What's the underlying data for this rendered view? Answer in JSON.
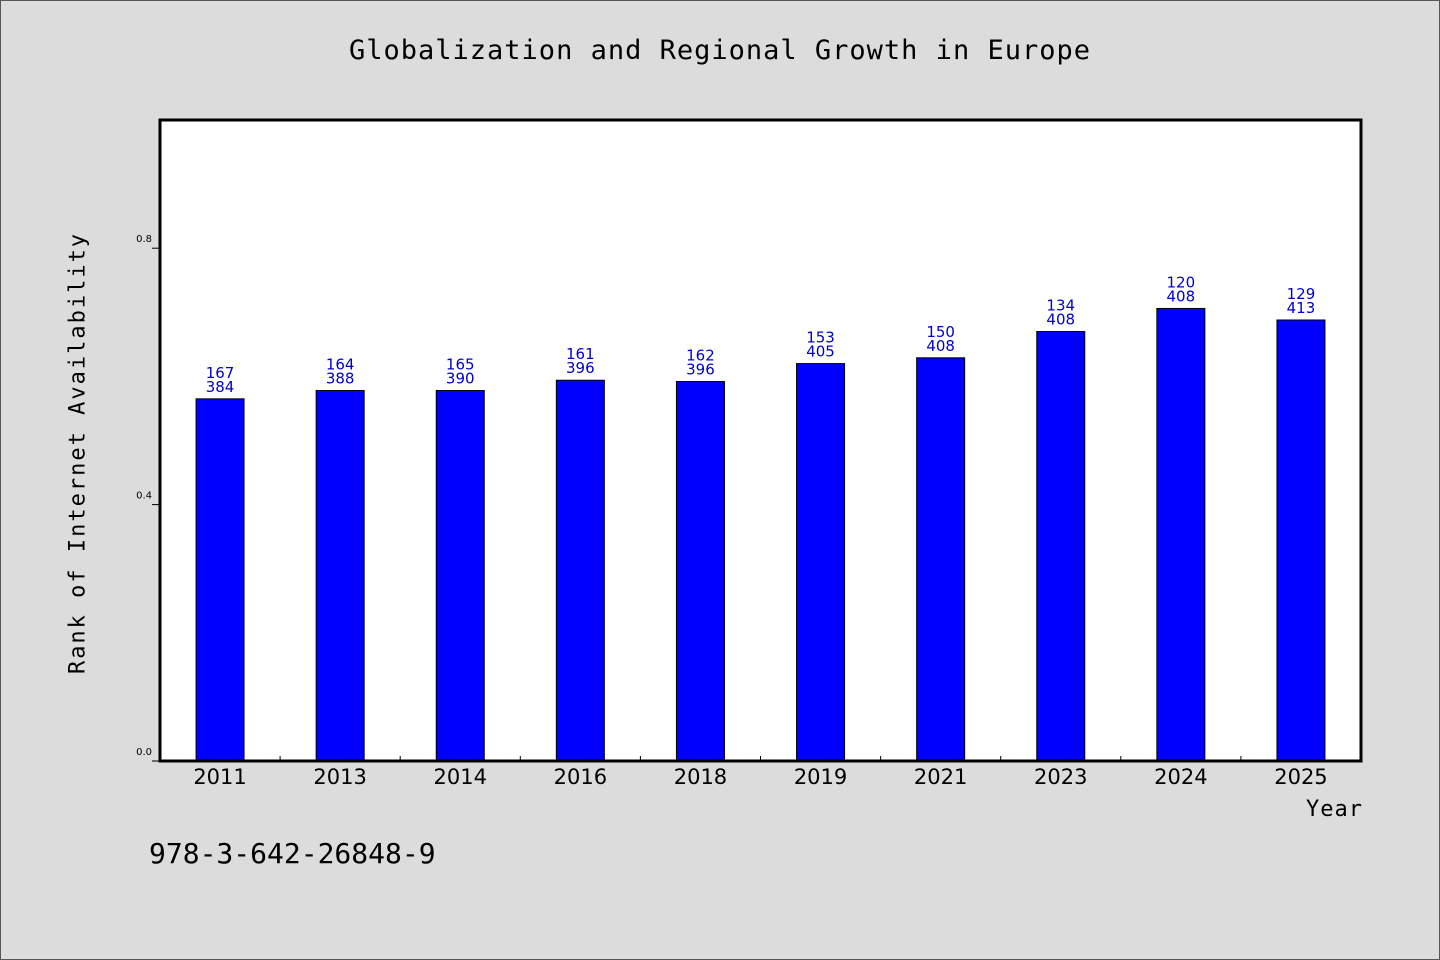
{
  "chart_data": {
    "type": "bar",
    "title": "Globalization and Regional Growth in Europe",
    "xlabel": "Year",
    "ylabel": "Rank of Internet Availability",
    "categories": [
      "2011",
      "2013",
      "2014",
      "2016",
      "2018",
      "2019",
      "2021",
      "2023",
      "2024",
      "2025"
    ],
    "values": [
      0.565,
      0.578,
      0.578,
      0.594,
      0.592,
      0.62,
      0.629,
      0.67,
      0.706,
      0.688
    ],
    "bar_labels_top": [
      "167",
      "164",
      "165",
      "161",
      "162",
      "153",
      "150",
      "134",
      "120",
      "129"
    ],
    "bar_labels_bottom": [
      "384",
      "388",
      "390",
      "396",
      "396",
      "405",
      "408",
      "408",
      "408",
      "413"
    ],
    "yticks": [
      0.0,
      0.4,
      0.8
    ],
    "ytick_labels": [
      "0.0",
      "0.4",
      "0.8"
    ],
    "ylim": [
      0,
      1.0
    ],
    "grid": false,
    "legend": "none",
    "colors": {
      "bar": "#0000ff",
      "label": "#0000cc",
      "plot_background": "#ffffff",
      "figure_background": "#dcdcdc"
    }
  },
  "footer": {
    "id_text": "978-3-642-26848-9"
  }
}
